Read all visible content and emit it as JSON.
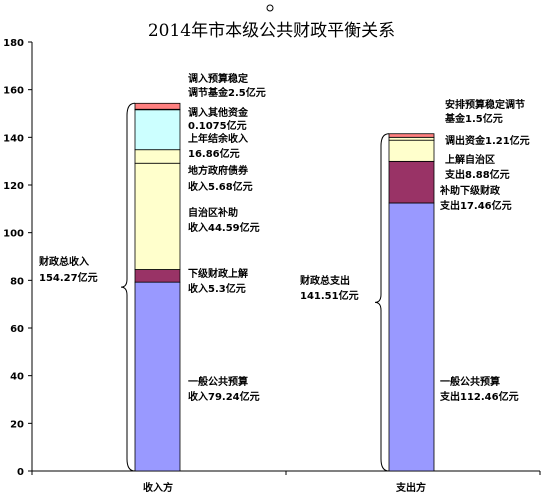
{
  "chart_data": {
    "type": "bar",
    "stacked": true,
    "title": "2014年市本级公共财政平衡关系",
    "xlabel": "",
    "ylabel": "",
    "ylim": [
      0,
      180
    ],
    "yticks": [
      0,
      20,
      40,
      60,
      80,
      100,
      120,
      140,
      160,
      180
    ],
    "grid": false,
    "legend": "none",
    "categories": [
      "收入方",
      "支出方"
    ],
    "stacks": [
      {
        "category": "收入方",
        "total_label": [
          "财政总收入",
          "154.27亿元"
        ],
        "segments": [
          {
            "value": 79.24,
            "color": "#9999ff",
            "label": [
              "一般公共预算",
              "收入79.24亿元"
            ]
          },
          {
            "value": 5.3,
            "color": "#993366",
            "label": [
              "下级财政上解",
              "收入5.3亿元"
            ]
          },
          {
            "value": 44.59,
            "color": "#ffffcc",
            "label": [
              "自治区补助",
              "收入44.59亿元"
            ]
          },
          {
            "value": 5.68,
            "color": "#ffffcc",
            "label": [
              "地方政府债券",
              "收入5.68亿元"
            ]
          },
          {
            "value": 16.86,
            "color": "#ccffff",
            "label": [
              "上年结余收入",
              "16.86亿元"
            ]
          },
          {
            "value": 0.1075,
            "color": "#660066",
            "label": [
              "调入其他资金",
              "0.1075亿元"
            ]
          },
          {
            "value": 2.5,
            "color": "#ff8080",
            "label": [
              "调入预算稳定",
              "调节基金2.5亿元"
            ]
          }
        ]
      },
      {
        "category": "支出方",
        "total_label": [
          "财政总支出",
          "141.51亿元"
        ],
        "segments": [
          {
            "value": 112.46,
            "color": "#9999ff",
            "label": [
              "一般公共预算",
              "支出112.46亿元"
            ]
          },
          {
            "value": 17.46,
            "color": "#993366",
            "label": [
              "补助下级财政",
              "支出17.46亿元"
            ]
          },
          {
            "value": 8.88,
            "color": "#ffffcc",
            "label": [
              "上解自治区",
              "支出8.88亿元"
            ]
          },
          {
            "value": 1.21,
            "color": "#ffffcc",
            "label": [
              "调出资金1.21亿元"
            ]
          },
          {
            "value": 1.5,
            "color": "#ff8080",
            "label": [
              "安排预算稳定调节",
              "基金1.5亿元"
            ]
          }
        ]
      }
    ]
  }
}
